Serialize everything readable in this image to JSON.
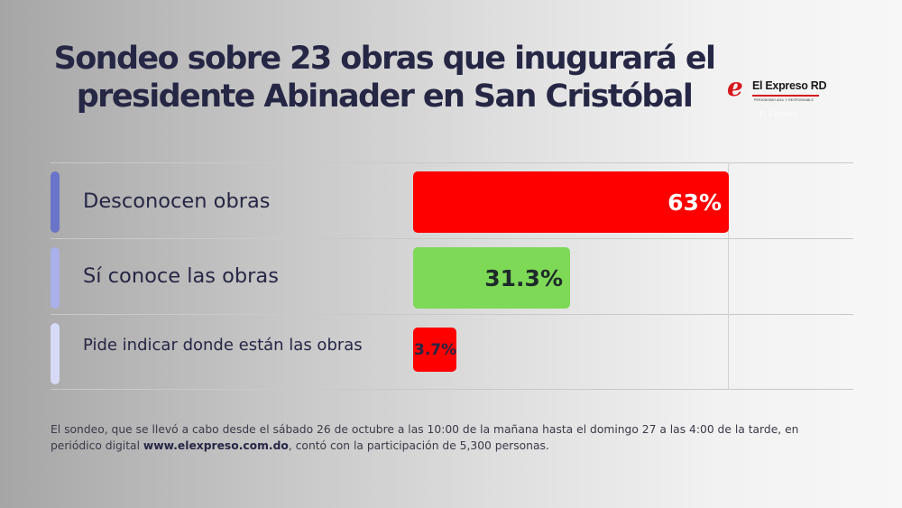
{
  "title": "Sondeo sobre 23 obras que inugurará el presidente Abinader en San Cristóbal",
  "title_lines": [
    "Sondeo sobre 23 obras que inugurará el",
    "presidente Abinader en San Cristóbal"
  ],
  "logo": {
    "mark": "e",
    "name": "El Expreso RD",
    "tagline": "PERIODISMO ÁGIL Y RESPONSABLE",
    "sub": "El Expreso"
  },
  "colors": {
    "title": "#262645",
    "bar_red": "#fe0000",
    "bar_green": "#7ed957",
    "accent_1": "#6a74c8",
    "accent_2": "#a9b0ea",
    "accent_3": "#d7daf7"
  },
  "chart_data": {
    "type": "bar",
    "orientation": "horizontal",
    "title": "Sondeo sobre 23 obras que inugurará el presidente Abinader en San Cristóbal",
    "categories": [
      "Desconocen obras",
      "Sí conoce las obras",
      "Pide indicar donde están las obras"
    ],
    "values": [
      63,
      31.3,
      3.7
    ],
    "value_labels": [
      "63%",
      "31.3%",
      "3.7%"
    ],
    "bar_colors": [
      "#fe0000",
      "#7ed957",
      "#fe0000"
    ],
    "xlim": [
      0,
      63
    ],
    "xlabel": "",
    "ylabel": "",
    "grid": true,
    "legend": "none"
  },
  "footer": {
    "text_before": "El sondeo, que se llevó a cabo desde el sábado 26 de octubre a las 10:00 de la mañana hasta el domingo 27 a las 4:00 de la tarde, en periódico digital ",
    "link": "www.elexpreso.com.do",
    "text_after": ",  contó con la participación de 5,300 personas."
  }
}
